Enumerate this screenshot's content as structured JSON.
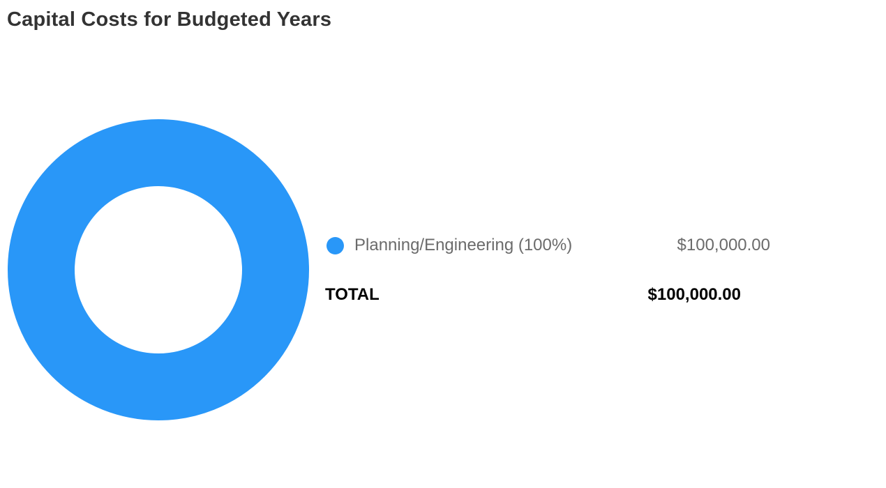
{
  "colors": {
    "accent": "#2997f8",
    "title": "#333333",
    "legend_text": "#6b6b6b",
    "total_text": "#000000"
  },
  "chart_data": {
    "type": "pie",
    "title": "Capital Costs for Budgeted Years",
    "categories": [
      "Planning/Engineering"
    ],
    "values": [
      100000
    ],
    "series": [
      {
        "name": "Planning/Engineering",
        "legend_label": "Planning/Engineering (100%)",
        "percent": 100,
        "value": 100000,
        "display_value": "$100,000.00",
        "color": "#2997f8"
      }
    ],
    "total": {
      "label": "TOTAL",
      "value": 100000,
      "display_value": "$100,000.00"
    },
    "donut": true,
    "legend_position": "right"
  }
}
